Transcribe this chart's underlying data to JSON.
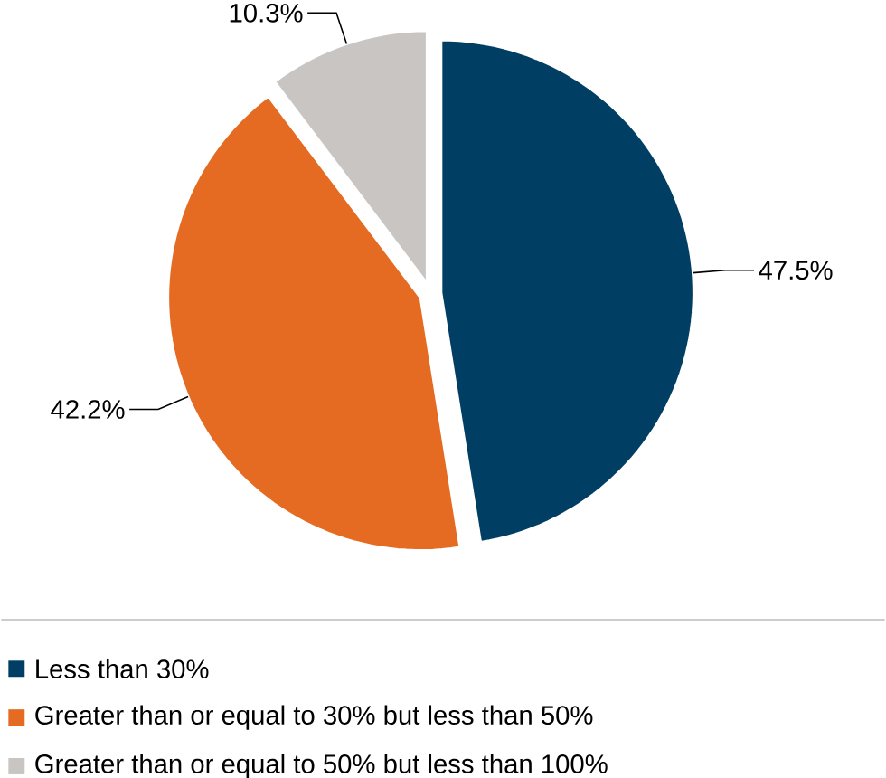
{
  "chart_data": {
    "type": "pie",
    "categories": [
      "Less than 30%",
      "Greater than or equal to 30% but less than 50%",
      "Greater than or equal to 50% but less than 100%"
    ],
    "values": [
      47.5,
      42.2,
      10.3
    ],
    "colors": [
      "#003f63",
      "#e56b22",
      "#c9c5c2"
    ],
    "value_labels": [
      "47.5%",
      "42.2%",
      "10.3%"
    ],
    "legend": "bottom"
  }
}
